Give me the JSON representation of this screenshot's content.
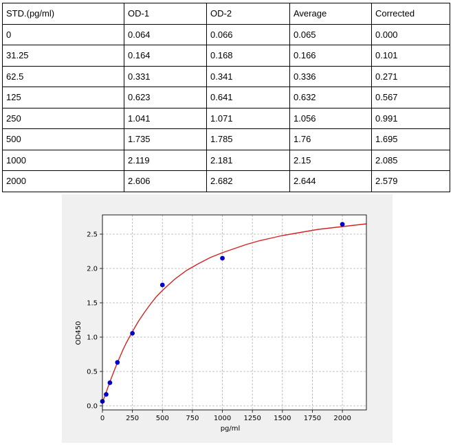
{
  "table": {
    "headers": [
      "STD.(pg/ml)",
      "OD-1",
      "OD-2",
      "Average",
      "Corrected"
    ],
    "rows": [
      [
        "0",
        "0.064",
        "0.066",
        "0.065",
        "0.000"
      ],
      [
        "31.25",
        "0.164",
        "0.168",
        "0.166",
        "0.101"
      ],
      [
        "62.5",
        "0.331",
        "0.341",
        "0.336",
        "0.271"
      ],
      [
        "125",
        "0.623",
        "0.641",
        "0.632",
        "0.567"
      ],
      [
        "250",
        "1.041",
        "1.071",
        "1.056",
        "0.991"
      ],
      [
        "500",
        "1.735",
        "1.785",
        "1.76",
        "1.695"
      ],
      [
        "1000",
        "2.119",
        "2.181",
        "2.15",
        "2.085"
      ],
      [
        "2000",
        "2.606",
        "2.682",
        "2.644",
        "2.579"
      ]
    ]
  },
  "chart_data": {
    "type": "scatter",
    "title": "",
    "xlabel": "pg/ml",
    "ylabel": "OD450",
    "xlim": [
      0,
      2200
    ],
    "ylim": [
      -0.06,
      2.78
    ],
    "xticks": [
      0,
      250,
      500,
      750,
      1000,
      1250,
      1500,
      1750,
      2000
    ],
    "yticks": [
      0.0,
      0.5,
      1.0,
      1.5,
      2.0,
      2.5
    ],
    "ytick_labels": [
      "0.0",
      "0.5",
      "1.0",
      "1.5",
      "2.0",
      "2.5"
    ],
    "grid": true,
    "points": {
      "x": [
        0,
        31.25,
        62.5,
        125,
        250,
        500,
        1000,
        2000
      ],
      "y": [
        0.065,
        0.166,
        0.336,
        0.632,
        1.056,
        1.76,
        2.15,
        2.644
      ],
      "color": "#0000cc"
    },
    "fit_curve": {
      "color": "#d62020",
      "x": [
        0,
        20,
        40,
        60,
        80,
        100,
        125,
        150,
        175,
        200,
        250,
        300,
        350,
        400,
        450,
        500,
        600,
        700,
        800,
        900,
        1000,
        1100,
        1200,
        1300,
        1400,
        1500,
        1600,
        1700,
        1800,
        1900,
        2000,
        2100,
        2200
      ],
      "y": [
        0.05,
        0.14,
        0.24,
        0.34,
        0.43,
        0.52,
        0.63,
        0.73,
        0.83,
        0.92,
        1.08,
        1.23,
        1.36,
        1.48,
        1.59,
        1.68,
        1.84,
        1.97,
        2.07,
        2.16,
        2.23,
        2.29,
        2.35,
        2.4,
        2.44,
        2.48,
        2.51,
        2.54,
        2.57,
        2.59,
        2.61,
        2.63,
        2.65
      ]
    }
  }
}
